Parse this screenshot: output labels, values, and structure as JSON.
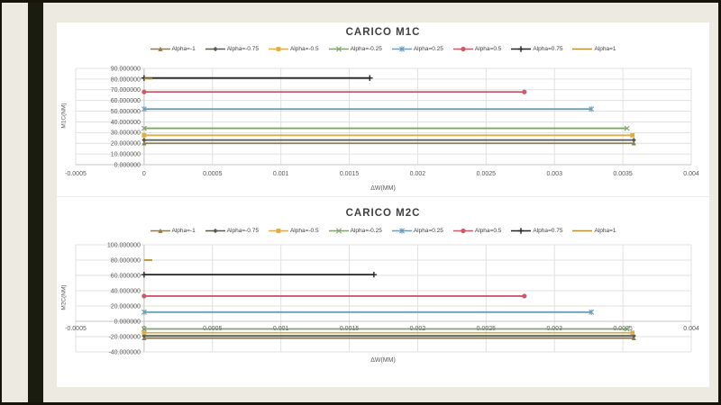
{
  "window": {
    "background": "#edeae2",
    "frame_color": "#16140b",
    "stripe_color": "#1a1c10",
    "panel_color": "#ffffff",
    "gridline_color": "#e2e1de",
    "axis_color": "#c6c5c2"
  },
  "chart_data": [
    {
      "type": "line",
      "title": "CARICO M1C",
      "xlabel": "ΔW(MM)",
      "ylabel": "M1C(NM)",
      "xlim": [
        -0.0005,
        0.004
      ],
      "ylim": [
        0,
        90
      ],
      "xticks": [
        -0.0005,
        0,
        0.0005,
        0.001,
        0.0015,
        0.002,
        0.0025,
        0.003,
        0.0035,
        0.004
      ],
      "yticks": [
        0,
        10,
        20,
        30,
        40,
        50,
        60,
        70,
        80,
        90
      ],
      "grid": true,
      "legend_position": "top",
      "series": [
        {
          "name": "Alpha=-1",
          "color": "#8b7d55",
          "marker": "triangle",
          "x": [
            0,
            0.00358
          ],
          "y": [
            20,
            20
          ]
        },
        {
          "name": "Alpha=-0.75",
          "color": "#595950",
          "marker": "diamond",
          "x": [
            0,
            0.00358
          ],
          "y": [
            23,
            23
          ]
        },
        {
          "name": "Alpha=-0.5",
          "color": "#dcae4a",
          "marker": "square",
          "x": [
            0,
            0.00357
          ],
          "y": [
            27.5,
            27.5
          ]
        },
        {
          "name": "Alpha=-0.25",
          "color": "#84a170",
          "marker": "x",
          "x": [
            0,
            0.00353
          ],
          "y": [
            34,
            34
          ]
        },
        {
          "name": "Alpha=0.25",
          "color": "#6f9db6",
          "marker": "asterisk",
          "x": [
            0,
            0.00327
          ],
          "y": [
            52,
            52
          ]
        },
        {
          "name": "Alpha=0.5",
          "color": "#cb5a6c",
          "marker": "circle",
          "x": [
            0,
            0.00278
          ],
          "y": [
            68,
            68
          ]
        },
        {
          "name": "Alpha=0.75",
          "color": "#262623",
          "marker": "plus",
          "x": [
            0,
            0.00165
          ],
          "y": [
            81,
            81
          ]
        },
        {
          "name": "Alpha=1",
          "color": "#bc8e2e",
          "marker": "none",
          "x": [
            0,
            6e-05
          ],
          "y": [
            80.4,
            80.4
          ]
        }
      ]
    },
    {
      "type": "line",
      "title": "CARICO M2C",
      "xlabel": "ΔW(MM)",
      "ylabel": "M2C(NM)",
      "xlim": [
        -0.0005,
        0.004
      ],
      "ylim": [
        -40,
        100
      ],
      "xticks": [
        -0.0005,
        0,
        0.0005,
        0.001,
        0.0015,
        0.002,
        0.0025,
        0.003,
        0.0035,
        0.004
      ],
      "yticks": [
        -40,
        -20,
        0,
        20,
        40,
        60,
        80,
        100
      ],
      "grid": true,
      "legend_position": "top",
      "series": [
        {
          "name": "Alpha=-1",
          "color": "#8b7d55",
          "marker": "triangle",
          "x": [
            0,
            0.00358
          ],
          "y": [
            -22,
            -22
          ]
        },
        {
          "name": "Alpha=-0.75",
          "color": "#595950",
          "marker": "diamond",
          "x": [
            0,
            0.00358
          ],
          "y": [
            -19,
            -19
          ]
        },
        {
          "name": "Alpha=-0.5",
          "color": "#dcae4a",
          "marker": "square",
          "x": [
            0,
            0.00357
          ],
          "y": [
            -15,
            -15
          ]
        },
        {
          "name": "Alpha=-0.25",
          "color": "#84a170",
          "marker": "x",
          "x": [
            0,
            0.00353
          ],
          "y": [
            -10,
            -10
          ]
        },
        {
          "name": "Alpha=0.25",
          "color": "#6f9db6",
          "marker": "asterisk",
          "x": [
            0,
            0.00327
          ],
          "y": [
            12,
            12
          ]
        },
        {
          "name": "Alpha=0.5",
          "color": "#cb5a6c",
          "marker": "circle",
          "x": [
            0,
            0.00278
          ],
          "y": [
            33,
            33
          ]
        },
        {
          "name": "Alpha=0.75",
          "color": "#262623",
          "marker": "plus",
          "x": [
            0,
            0.00168
          ],
          "y": [
            61,
            61
          ]
        },
        {
          "name": "Alpha=1",
          "color": "#bc8e2e",
          "marker": "none",
          "x": [
            0,
            6e-05
          ],
          "y": [
            80,
            80
          ]
        }
      ]
    }
  ]
}
